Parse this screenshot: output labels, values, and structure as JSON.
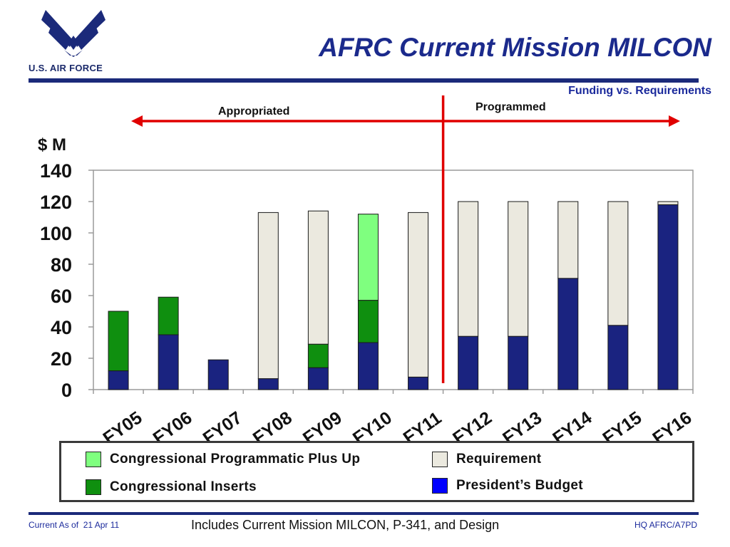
{
  "header": {
    "logo_text": "U.S. AIR FORCE",
    "title": "AFRC Current Mission MILCON",
    "subtitle": "Funding vs. Requirements"
  },
  "annotations": {
    "appropriated": "Appropriated",
    "programmed": "Programmed",
    "divider_after": "FY11"
  },
  "colors": {
    "title": "#1b2a8c",
    "presidents_budget": "#1a2380",
    "congressional_inserts": "#0f8f0f",
    "plus_up": "#7fff7f",
    "requirement": "#ebe9df",
    "arrow": "#e00000"
  },
  "chart_data": {
    "type": "bar",
    "stacked": true,
    "ylabel": "$ M",
    "ylim": [
      0,
      140
    ],
    "yticks": [
      0,
      20,
      40,
      60,
      80,
      100,
      120,
      140
    ],
    "grid": false,
    "legend_position": "bottom",
    "categories": [
      "FY05",
      "FY06",
      "FY07",
      "FY08",
      "FY09",
      "FY10",
      "FY11",
      "FY12",
      "FY13",
      "FY14",
      "FY15",
      "FY16"
    ],
    "series": [
      {
        "name": "President’s Budget",
        "color": "#1a2380",
        "values": [
          12,
          35,
          19,
          7,
          14,
          30,
          8,
          34,
          34,
          71,
          41,
          118
        ]
      },
      {
        "name": "Congressional Inserts",
        "color": "#0f8f0f",
        "values": [
          38,
          24,
          0,
          0,
          15,
          27,
          0,
          0,
          0,
          0,
          0,
          0
        ]
      },
      {
        "name": "Congressional Programmatic Plus Up",
        "color": "#7fff7f",
        "values": [
          0,
          0,
          0,
          0,
          0,
          55,
          0,
          0,
          0,
          0,
          0,
          0
        ]
      },
      {
        "name": "Requirement",
        "color": "#ebe9df",
        "values": [
          0,
          0,
          0,
          106,
          85,
          0,
          105,
          86,
          86,
          49,
          79,
          2
        ]
      }
    ]
  },
  "legend": {
    "items": [
      {
        "label": "Congressional Programmatic Plus Up",
        "color": "#7fff7f"
      },
      {
        "label": "Congressional Inserts",
        "color": "#0f8f0f"
      },
      {
        "label": "Requirement",
        "color": "#ebe9df"
      },
      {
        "label": "President’s Budget",
        "color": "#0000ff"
      }
    ]
  },
  "footer": {
    "left": "Current As of  21 Apr 11",
    "center": "Includes Current Mission MILCON, P-341, and Design",
    "right": "HQ AFRC/A7PD"
  }
}
